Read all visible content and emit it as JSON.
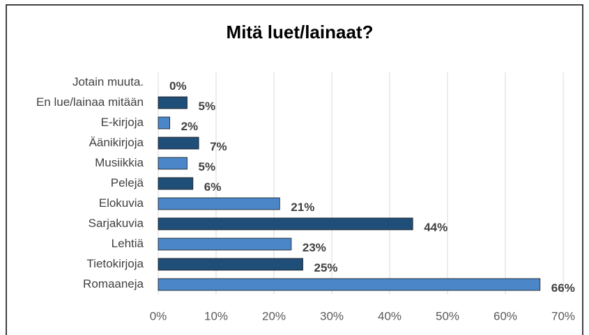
{
  "chart_data": {
    "type": "hbar",
    "title": "Mitä luet/lainaat?",
    "categories": [
      "Jotain muuta.",
      "En lue/lainaa mitään",
      "E-kirjoja",
      "Äänikirjoja",
      "Musiikkia",
      "Pelejä",
      "Elokuvia",
      "Sarjakuvia",
      "Lehtiä",
      "Tietokirjoja",
      "Romaaneja"
    ],
    "values": [
      0,
      5,
      2,
      7,
      5,
      6,
      21,
      44,
      23,
      25,
      66
    ],
    "value_labels": [
      "0%",
      "5%",
      "2%",
      "7%",
      "5%",
      "6%",
      "21%",
      "44%",
      "23%",
      "25%",
      "66%"
    ],
    "colors": [
      "#4a86c8",
      "#1f4e79",
      "#4a86c8",
      "#1f4e79",
      "#4a86c8",
      "#1f4e79",
      "#4a86c8",
      "#1f4e79",
      "#4a86c8",
      "#1f4e79",
      "#4a86c8"
    ],
    "xlim": [
      0,
      70
    ],
    "xticks": [
      {
        "value": 0,
        "label": "0%"
      },
      {
        "value": 10,
        "label": "10%"
      },
      {
        "value": 20,
        "label": "20%"
      },
      {
        "value": 30,
        "label": "30%"
      },
      {
        "value": 40,
        "label": "40%"
      },
      {
        "value": 50,
        "label": "50%"
      },
      {
        "value": 60,
        "label": "60%"
      },
      {
        "value": 70,
        "label": "70%"
      }
    ],
    "grid": true
  }
}
